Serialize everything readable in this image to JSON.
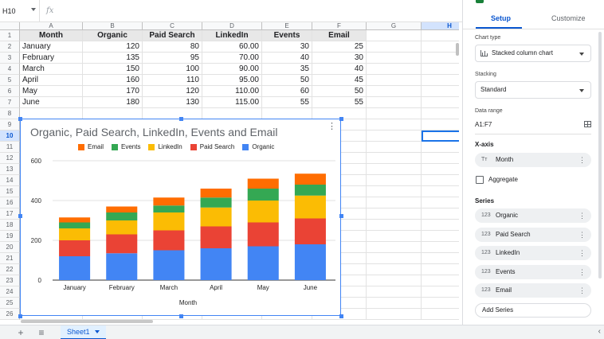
{
  "formula_bar": {
    "cell_ref": "H10",
    "fx": "fx"
  },
  "columns": [
    "A",
    "B",
    "C",
    "D",
    "E",
    "F",
    "G",
    "H"
  ],
  "selected_column": "H",
  "row_numbers": [
    "1",
    "2",
    "3",
    "4",
    "5",
    "6",
    "7",
    "8",
    "9",
    "10",
    "11",
    "12",
    "13",
    "14",
    "15",
    "16",
    "17",
    "18",
    "19",
    "20",
    "21",
    "22",
    "23",
    "24",
    "25",
    "26"
  ],
  "selected_row": "10",
  "table": {
    "headers": [
      "Month",
      "Organic",
      "Paid Search",
      "LinkedIn",
      "Events",
      "Email"
    ],
    "rows": [
      [
        "January",
        "120",
        "80",
        "60.00",
        "30",
        "25"
      ],
      [
        "February",
        "135",
        "95",
        "70.00",
        "40",
        "30"
      ],
      [
        "March",
        "150",
        "100",
        "90.00",
        "35",
        "40"
      ],
      [
        "April",
        "160",
        "110",
        "95.00",
        "50",
        "45"
      ],
      [
        "May",
        "170",
        "120",
        "110.00",
        "60",
        "50"
      ],
      [
        "June",
        "180",
        "130",
        "115.00",
        "55",
        "55"
      ]
    ]
  },
  "chart": {
    "title": "Organic, Paid Search, LinkedIn, Events and Email",
    "menu_icon": "more-vert-icon",
    "legend": [
      {
        "name": "Email",
        "color": "#ff6d01"
      },
      {
        "name": "Events",
        "color": "#34a853"
      },
      {
        "name": "LinkedIn",
        "color": "#fbbc04"
      },
      {
        "name": "Paid Search",
        "color": "#ea4335"
      },
      {
        "name": "Organic",
        "color": "#4285f4"
      }
    ]
  },
  "chart_data": {
    "type": "bar",
    "stacked": true,
    "title": "Organic, Paid Search, LinkedIn, Events and Email",
    "xlabel": "Month",
    "ylabel": "",
    "categories": [
      "January",
      "February",
      "March",
      "April",
      "May",
      "June"
    ],
    "series": [
      {
        "name": "Organic",
        "color": "#4285f4",
        "values": [
          120,
          135,
          150,
          160,
          170,
          180
        ]
      },
      {
        "name": "Paid Search",
        "color": "#ea4335",
        "values": [
          80,
          95,
          100,
          110,
          120,
          130
        ]
      },
      {
        "name": "LinkedIn",
        "color": "#fbbc04",
        "values": [
          60,
          70,
          90,
          95,
          110,
          115
        ]
      },
      {
        "name": "Events",
        "color": "#34a853",
        "values": [
          30,
          40,
          35,
          50,
          60,
          55
        ]
      },
      {
        "name": "Email",
        "color": "#ff6d01",
        "values": [
          25,
          30,
          40,
          45,
          50,
          55
        ]
      }
    ],
    "ylim": [
      0,
      600
    ],
    "yticks": [
      "0",
      "200",
      "400",
      "600"
    ],
    "grid": true,
    "legend_position": "top"
  },
  "sheet_tabs": {
    "add_icon": "+",
    "list_icon": "≡",
    "active_tab": "Sheet1"
  },
  "panel": {
    "tabs": [
      "Setup",
      "Customize"
    ],
    "active_tab": "Setup",
    "chart_type_label": "Chart type",
    "chart_type_value": "Stacked column chart",
    "stacking_label": "Stacking",
    "stacking_value": "Standard",
    "data_range_label": "Data range",
    "data_range_value": "A1:F7",
    "xaxis_title": "X-axis",
    "xaxis_prefix": "Tт",
    "xaxis_value": "Month",
    "aggregate_label": "Aggregate",
    "series_title": "Series",
    "series_prefix": "123",
    "series": [
      "Organic",
      "Paid Search",
      "LinkedIn",
      "Events",
      "Email"
    ],
    "add_series": "Add Series"
  }
}
